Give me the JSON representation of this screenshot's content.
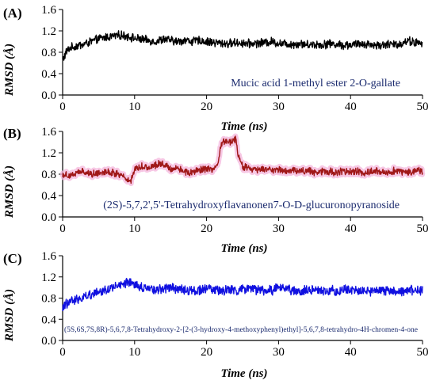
{
  "figure": {
    "panels": [
      {
        "letter": "(A)",
        "ylabel": "RMSD (Å)",
        "xlabel": "Time (ns)",
        "annotation": "Mucic acid 1-methyl ester 2-O-gallate",
        "color": "#000000",
        "shade_color": ""
      },
      {
        "letter": "(B)",
        "ylabel": "RMSD (Å)",
        "xlabel": "Time (ns)",
        "annotation": "(2S)-5,7,2',5'-Tetrahydroxyflavanonen7-O-D-glucuronopyranoside",
        "color": "#a01818",
        "shade_color": "#f4b6dc"
      },
      {
        "letter": "(C)",
        "ylabel": "RMSD (Å)",
        "xlabel": "Time (ns)",
        "annotation": "(5S,6S,7S,8R)-5,6,7,8-Tetrahydroxy-2-[2-(3-hydroxy-4-methoxyphenyl)ethyl]-5,6,7,8-tetrahydro-4H-chromen-4-one",
        "color": "#1010e0",
        "shade_color": ""
      }
    ]
  },
  "chart_data": [
    {
      "type": "line",
      "title": "",
      "xlabel": "Time (ns)",
      "ylabel": "RMSD (Å)",
      "xlim": [
        0,
        50
      ],
      "ylim": [
        0.0,
        1.6
      ],
      "xticks": [
        0,
        10,
        20,
        30,
        40,
        50
      ],
      "yticks": [
        0.0,
        0.4,
        0.8,
        1.2,
        1.6
      ],
      "ytick_labels": [
        "0.0",
        "0.4",
        "0.8",
        "1.2",
        "1.6"
      ],
      "annotation": "Mucic acid 1-methyl ester 2-O-gallate",
      "series": [
        {
          "x": [
            0,
            0.5,
            1,
            2,
            3,
            4,
            5,
            6,
            7,
            8,
            9,
            10,
            11,
            12,
            13,
            14,
            15,
            16,
            17,
            18,
            19,
            20,
            21,
            22,
            23,
            24,
            25,
            26,
            27,
            28,
            29,
            30,
            31,
            32,
            33,
            34,
            35,
            36,
            37,
            38,
            39,
            40,
            41,
            42,
            43,
            44,
            45,
            46,
            47,
            48,
            49,
            50
          ],
          "y": [
            0.65,
            0.8,
            0.88,
            0.92,
            0.95,
            1.0,
            1.05,
            1.08,
            1.1,
            1.12,
            1.1,
            1.06,
            1.04,
            1.02,
            1.0,
            1.05,
            1.02,
            1.0,
            1.03,
            1.0,
            1.02,
            1.0,
            0.98,
            0.97,
            0.96,
            0.98,
            0.97,
            0.96,
            0.97,
            0.98,
            1.0,
            0.97,
            0.96,
            0.95,
            0.96,
            0.94,
            0.95,
            0.94,
            0.96,
            0.95,
            0.93,
            0.94,
            0.95,
            0.96,
            0.94,
            0.93,
            0.95,
            0.94,
            0.96,
            1.02,
            0.98,
            0.95
          ]
        }
      ]
    },
    {
      "type": "line",
      "title": "",
      "xlabel": "Time (ns)",
      "ylabel": "RMSD (Å)",
      "xlim": [
        0,
        50
      ],
      "ylim": [
        0.0,
        1.6
      ],
      "xticks": [
        0,
        10,
        20,
        30,
        40,
        50
      ],
      "yticks": [
        0.0,
        0.4,
        0.8,
        1.2,
        1.6
      ],
      "ytick_labels": [
        "0.0",
        "0.4",
        "0.8",
        "1.2",
        "1.6"
      ],
      "annotation": "(2S)-5,7,2',5'-Tetrahydroxyflavanonen7-O-D-glucuronopyranoside",
      "series": [
        {
          "x": [
            0,
            1,
            2,
            3,
            4,
            5,
            6,
            7,
            8,
            9,
            9.5,
            10,
            11,
            12,
            13,
            14,
            15,
            16,
            17,
            18,
            19,
            20,
            21,
            21.5,
            22,
            22.5,
            23,
            24,
            24.5,
            25,
            26,
            27,
            28,
            29,
            30,
            31,
            32,
            33,
            34,
            35,
            36,
            37,
            38,
            39,
            40,
            41,
            42,
            43,
            44,
            45,
            46,
            47,
            48,
            49,
            50
          ],
          "y": [
            0.8,
            0.78,
            0.82,
            0.85,
            0.8,
            0.83,
            0.85,
            0.82,
            0.8,
            0.7,
            0.68,
            0.9,
            0.95,
            0.92,
            0.98,
            1.0,
            0.9,
            0.92,
            0.85,
            0.82,
            0.88,
            0.9,
            0.86,
            0.95,
            1.35,
            1.42,
            1.4,
            1.45,
            1.1,
            0.95,
            0.9,
            0.88,
            0.9,
            0.87,
            0.89,
            0.86,
            0.88,
            0.85,
            0.87,
            0.84,
            0.86,
            0.85,
            0.83,
            0.86,
            0.84,
            0.85,
            0.83,
            0.86,
            0.85,
            0.84,
            0.86,
            0.85,
            0.84,
            0.87,
            0.86
          ]
        }
      ]
    },
    {
      "type": "line",
      "title": "",
      "xlabel": "Time (ns)",
      "ylabel": "RMSD (Å)",
      "xlim": [
        0,
        50
      ],
      "ylim": [
        0.0,
        1.6
      ],
      "xticks": [
        0,
        10,
        20,
        30,
        40,
        50
      ],
      "yticks": [
        0.0,
        0.4,
        0.8,
        1.2,
        1.6
      ],
      "ytick_labels": [
        "0.0",
        "0.4",
        "0.8",
        "1.2",
        "1.6"
      ],
      "annotation": "(5S,6S,7S,8R)-5,6,7,8-Tetrahydroxy-2-[2-(3-hydroxy-4-methoxyphenyl)ethyl]-5,6,7,8-tetrahydro-4H-chromen-4-one",
      "series": [
        {
          "x": [
            0,
            0.5,
            1,
            2,
            3,
            4,
            5,
            6,
            7,
            8,
            9,
            10,
            11,
            12,
            13,
            14,
            15,
            16,
            17,
            18,
            19,
            20,
            21,
            22,
            23,
            24,
            25,
            26,
            27,
            28,
            29,
            30,
            31,
            32,
            33,
            34,
            35,
            36,
            37,
            38,
            39,
            40,
            41,
            42,
            43,
            44,
            45,
            46,
            47,
            48,
            49,
            50
          ],
          "y": [
            0.6,
            0.7,
            0.72,
            0.78,
            0.82,
            0.88,
            0.92,
            0.96,
            1.0,
            1.04,
            1.08,
            1.06,
            1.0,
            0.98,
            0.95,
            0.98,
            1.0,
            0.97,
            0.95,
            0.94,
            0.96,
            0.98,
            0.95,
            0.93,
            0.96,
            0.94,
            0.97,
            0.95,
            0.96,
            0.95,
            0.94,
            1.02,
            0.96,
            0.94,
            0.93,
            0.95,
            0.94,
            0.92,
            0.96,
            0.93,
            0.95,
            0.97,
            0.92,
            0.94,
            0.93,
            0.96,
            0.94,
            0.95,
            0.93,
            0.95,
            0.94,
            0.94
          ]
        }
      ]
    }
  ]
}
